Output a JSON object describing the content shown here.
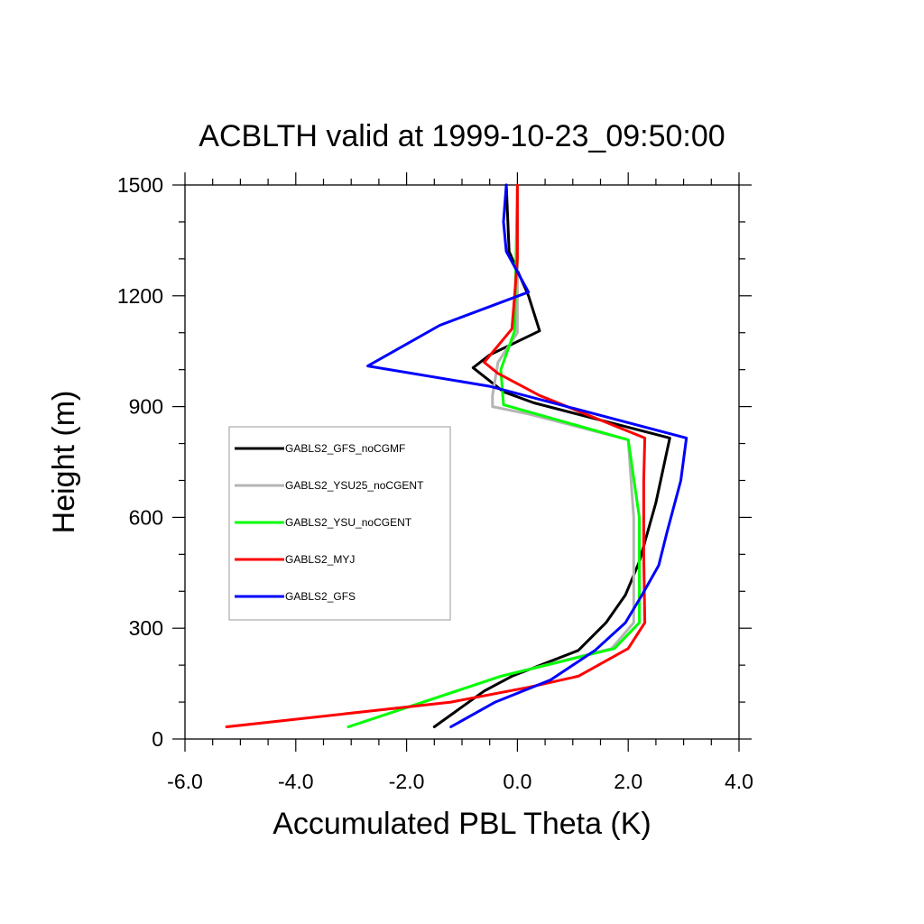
{
  "chart_data": {
    "type": "line",
    "title": "ACBLTH valid at 1999-10-23_09:50:00",
    "xlabel": "Accumulated PBL Theta (K)",
    "ylabel": "Height (m)",
    "xlim": [
      -6.0,
      4.0
    ],
    "ylim": [
      0,
      1500
    ],
    "xticks": [
      -6.0,
      -4.0,
      -2.0,
      0.0,
      2.0,
      4.0
    ],
    "xtick_labels": [
      "-6.0",
      "-4.0",
      "-2.0",
      "0.0",
      "2.0",
      "4.0"
    ],
    "yticks": [
      0,
      300,
      600,
      900,
      1200,
      1500
    ],
    "ytick_labels": [
      "0",
      "300",
      "600",
      "900",
      "1200",
      "1500"
    ],
    "grid": false,
    "legend_position": "left-middle",
    "series": [
      {
        "name": "GABLS2_GFS_noCGMF",
        "color": "#000000",
        "points": [
          [
            -1.5,
            33
          ],
          [
            -0.6,
            130
          ],
          [
            -0.1,
            170
          ],
          [
            1.1,
            240
          ],
          [
            1.6,
            315
          ],
          [
            1.95,
            390
          ],
          [
            2.2,
            480
          ],
          [
            2.5,
            640
          ],
          [
            2.7,
            780
          ],
          [
            2.75,
            815
          ],
          [
            0.3,
            910
          ],
          [
            -0.25,
            940
          ],
          [
            -0.8,
            1005
          ],
          [
            -0.5,
            1040
          ],
          [
            0.4,
            1105
          ],
          [
            0.2,
            1200
          ],
          [
            -0.15,
            1320
          ],
          [
            -0.2,
            1500
          ]
        ]
      },
      {
        "name": "GABLS2_YSU25_noCGENT",
        "color": "#b4b4b4",
        "points": [
          [
            -3.05,
            33
          ],
          [
            -1.7,
            100
          ],
          [
            -0.3,
            170
          ],
          [
            1.7,
            245
          ],
          [
            2.1,
            315
          ],
          [
            2.1,
            600
          ],
          [
            2.0,
            810
          ],
          [
            0.2,
            880
          ],
          [
            -0.45,
            900
          ],
          [
            -0.45,
            930
          ],
          [
            -0.35,
            1020
          ],
          [
            0.0,
            1100
          ],
          [
            0.0,
            1500
          ]
        ]
      },
      {
        "name": "GABLS2_YSU_noCGENT",
        "color": "#00ff00",
        "points": [
          [
            -3.05,
            33
          ],
          [
            -1.7,
            100
          ],
          [
            -0.3,
            170
          ],
          [
            1.75,
            245
          ],
          [
            2.2,
            315
          ],
          [
            2.2,
            600
          ],
          [
            2.0,
            810
          ],
          [
            -0.25,
            905
          ],
          [
            -0.3,
            1000
          ],
          [
            -0.05,
            1105
          ],
          [
            0.0,
            1500
          ]
        ]
      },
      {
        "name": "GABLS2_MYJ",
        "color": "#ff0000",
        "points": [
          [
            -5.25,
            33
          ],
          [
            -1.2,
            100
          ],
          [
            0.2,
            140
          ],
          [
            1.1,
            170
          ],
          [
            2.0,
            245
          ],
          [
            2.3,
            315
          ],
          [
            2.28,
            500
          ],
          [
            2.28,
            700
          ],
          [
            2.3,
            815
          ],
          [
            0.4,
            930
          ],
          [
            -0.35,
            990
          ],
          [
            -0.6,
            1020
          ],
          [
            -0.1,
            1110
          ],
          [
            -0.05,
            1200
          ],
          [
            0.0,
            1300
          ],
          [
            0.0,
            1500
          ]
        ]
      },
      {
        "name": "GABLS2_GFS",
        "color": "#0000ff",
        "points": [
          [
            -1.2,
            33
          ],
          [
            -0.4,
            100
          ],
          [
            0.6,
            160
          ],
          [
            1.4,
            240
          ],
          [
            1.95,
            315
          ],
          [
            2.25,
            390
          ],
          [
            2.55,
            470
          ],
          [
            2.7,
            560
          ],
          [
            2.95,
            700
          ],
          [
            3.05,
            815
          ],
          [
            -0.5,
            955
          ],
          [
            -2.7,
            1010
          ],
          [
            -1.4,
            1120
          ],
          [
            0.2,
            1210
          ],
          [
            -0.2,
            1320
          ],
          [
            -0.25,
            1400
          ],
          [
            -0.2,
            1500
          ]
        ]
      }
    ]
  }
}
